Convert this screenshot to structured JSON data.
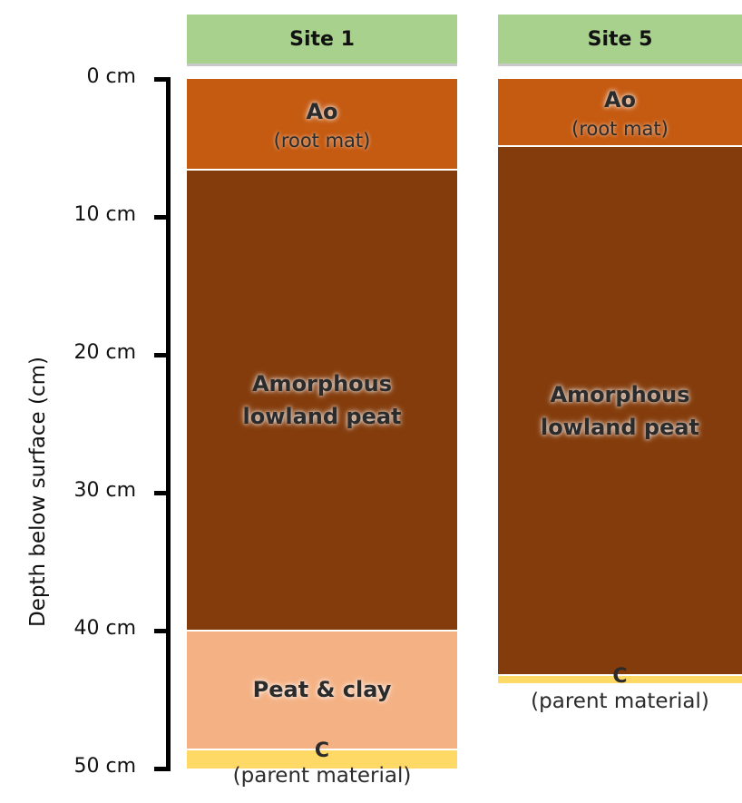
{
  "axis": {
    "title": "Depth below surface (cm)",
    "ticks": [
      {
        "label": "0 cm",
        "depth": 0
      },
      {
        "label": "10 cm",
        "depth": 10
      },
      {
        "label": "20 cm",
        "depth": 20
      },
      {
        "label": "30 cm",
        "depth": 30
      },
      {
        "label": "40 cm",
        "depth": 40
      },
      {
        "label": "50 cm",
        "depth": 50
      }
    ]
  },
  "sites": [
    {
      "title": "Site 1",
      "layers": [
        {
          "name": "Ao",
          "sub": "(root mat)",
          "top": 0,
          "bottom": 6.6,
          "color": "#c55a11"
        },
        {
          "name": "Amorphous lowland peat",
          "sub": "",
          "top": 6.6,
          "bottom": 40,
          "color": "#843c0c"
        },
        {
          "name": "Peat & clay",
          "sub": "",
          "top": 40,
          "bottom": 48.6,
          "color": "#f4b183"
        },
        {
          "name": "C",
          "sub": "(parent material)",
          "top": 48.6,
          "bottom": 50,
          "color": "#ffd966"
        }
      ]
    },
    {
      "title": "Site 5",
      "layers": [
        {
          "name": "Ao",
          "sub": "(root mat)",
          "top": 0,
          "bottom": 4.9,
          "color": "#c55a11"
        },
        {
          "name": "Amorphous lowland peat",
          "sub": "",
          "top": 4.9,
          "bottom": 43.2,
          "color": "#843c0c"
        },
        {
          "name": "C",
          "sub": "(parent material)",
          "top": 43.2,
          "bottom": 43.8,
          "color": "#ffd966"
        }
      ]
    }
  ]
}
